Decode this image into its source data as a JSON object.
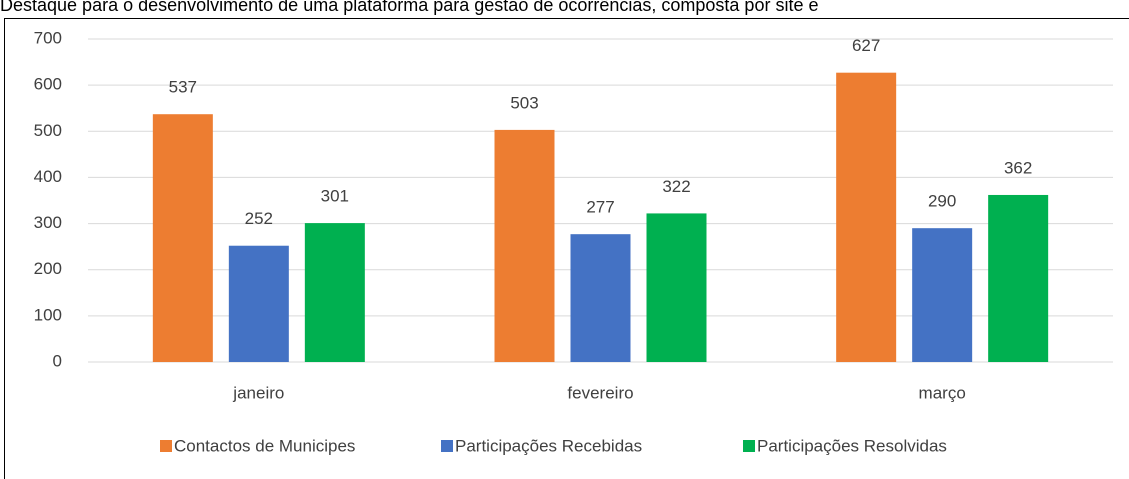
{
  "text": "Destaque para o desenvolvimento de uma plataforma para gestão de ocorrências, composta por site e",
  "chart_data": {
    "type": "bar",
    "categories": [
      "janeiro",
      "fevereiro",
      "março"
    ],
    "series": [
      {
        "name": "Contactos de Municipes",
        "color": "#ed7d31",
        "values": [
          537,
          503,
          627
        ]
      },
      {
        "name": "Participações Recebidas",
        "color": "#4472c4",
        "values": [
          252,
          277,
          290
        ]
      },
      {
        "name": "Participações Resolvidas",
        "color": "#00b050",
        "values": [
          301,
          322,
          362
        ]
      }
    ],
    "ylim": [
      0,
      700
    ],
    "yticks": [
      0,
      100,
      200,
      300,
      400,
      500,
      600,
      700
    ],
    "grid": true,
    "legend": "bottom"
  }
}
